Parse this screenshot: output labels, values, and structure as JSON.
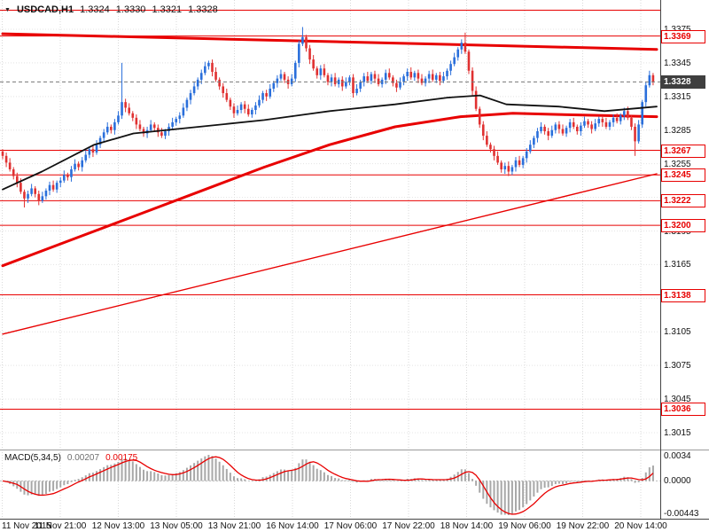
{
  "header": {
    "dropdown_icon": "▼",
    "symbol": "USDCAD,H1",
    "open": "1.3324",
    "high": "1.3330",
    "low": "1.3321",
    "close": "1.3328"
  },
  "chart_data": {
    "type": "candlestick",
    "title": "USDCAD,H1",
    "symbol": "USDCAD",
    "timeframe": "H1",
    "ylim": [
      1.3005,
      1.3395
    ],
    "grid": true,
    "legend_position": "none",
    "x_labels": [
      "11 Nov 2015",
      "11 Nov 21:00",
      "12 Nov 13:00",
      "13 Nov 05:00",
      "13 Nov 21:00",
      "16 Nov 14:00",
      "17 Nov 06:00",
      "17 Nov 22:00",
      "18 Nov 14:00",
      "19 Nov 06:00",
      "19 Nov 22:00",
      "20 Nov 14:00"
    ],
    "y_ticks": [
      "1.3375",
      "1.3345",
      "1.3315",
      "1.3285",
      "1.3255",
      "1.3195",
      "1.3165",
      "1.3105",
      "1.3075",
      "1.3045",
      "1.3015"
    ],
    "levels": [
      {
        "label": "",
        "price": 1.3392
      },
      {
        "label": "1.3369",
        "price": 1.3369
      },
      {
        "label": "1.3267",
        "price": 1.3267
      },
      {
        "label": "1.3245",
        "price": 1.3245
      },
      {
        "label": "1.3222",
        "price": 1.3222
      },
      {
        "label": "1.3200",
        "price": 1.32
      },
      {
        "label": "1.3138",
        "price": 1.3138
      },
      {
        "label": "1.3036",
        "price": 1.3036
      }
    ],
    "current_price": {
      "label": "1.3328",
      "price": 1.3328
    },
    "candles": {
      "first_open": 1.3266,
      "closes": [
        1.3262,
        1.3256,
        1.325,
        1.3244,
        1.3238,
        1.323,
        1.3224,
        1.3228,
        1.3233,
        1.3228,
        1.3222,
        1.3226,
        1.3231,
        1.3236,
        1.3232,
        1.3238,
        1.324,
        1.3245,
        1.3243,
        1.325,
        1.3255,
        1.3252,
        1.3258,
        1.3263,
        1.3268,
        1.3265,
        1.3272,
        1.3278,
        1.3283,
        1.3288,
        1.3285,
        1.3292,
        1.3298,
        1.331,
        1.3305,
        1.33,
        1.3296,
        1.329,
        1.3286,
        1.3282,
        1.3285,
        1.329,
        1.3287,
        1.3283,
        1.328,
        1.3284,
        1.3288,
        1.3292,
        1.3295,
        1.3298,
        1.3305,
        1.3312,
        1.3318,
        1.3324,
        1.333,
        1.3336,
        1.3342,
        1.3345,
        1.3337,
        1.333,
        1.3324,
        1.3318,
        1.3312,
        1.3306,
        1.33,
        1.3303,
        1.3308,
        1.3304,
        1.3299,
        1.3303,
        1.3307,
        1.3312,
        1.3318,
        1.3315,
        1.3322,
        1.3327,
        1.3331,
        1.3335,
        1.333,
        1.3326,
        1.3331,
        1.3345,
        1.3362,
        1.3368,
        1.3358,
        1.3348,
        1.334,
        1.3334,
        1.334,
        1.3334,
        1.3328,
        1.3332,
        1.3326,
        1.333,
        1.3324,
        1.3328,
        1.3332,
        1.3318,
        1.3322,
        1.3328,
        1.3333,
        1.3329,
        1.3335,
        1.3331,
        1.3326,
        1.333,
        1.3336,
        1.3332,
        1.3327,
        1.3323,
        1.3328,
        1.3333,
        1.3337,
        1.3332,
        1.3336,
        1.3331,
        1.3327,
        1.3331,
        1.3335,
        1.333,
        1.3334,
        1.3329,
        1.3333,
        1.3338,
        1.3344,
        1.335,
        1.3357,
        1.3363,
        1.3355,
        1.3338,
        1.332,
        1.3304,
        1.329,
        1.328,
        1.3272,
        1.3268,
        1.3262,
        1.3256,
        1.325,
        1.3253,
        1.3248,
        1.3252,
        1.3258,
        1.3254,
        1.326,
        1.3266,
        1.3272,
        1.3278,
        1.3284,
        1.3288,
        1.3284,
        1.328,
        1.3285,
        1.329,
        1.3286,
        1.3282,
        1.3287,
        1.3292,
        1.3288,
        1.3284,
        1.3289,
        1.3293,
        1.329,
        1.3286,
        1.3291,
        1.3295,
        1.3292,
        1.3288,
        1.3292,
        1.3296,
        1.3293,
        1.3298,
        1.3302,
        1.3296,
        1.3288,
        1.3275,
        1.329,
        1.331,
        1.3325,
        1.3334,
        1.3328
      ],
      "wick_overrides": {
        "6": {
          "l": 1.3216
        },
        "33": {
          "h": 1.3345
        },
        "83": {
          "h": 1.3377
        },
        "128": {
          "h": 1.3372
        },
        "140": {
          "l": 1.3244
        },
        "175": {
          "l": 1.3262
        }
      }
    },
    "indicators": {
      "ma_black": {
        "points": [
          [
            0,
            1.3232
          ],
          [
            0.06,
            1.3248
          ],
          [
            0.14,
            1.3272
          ],
          [
            0.2,
            1.3282
          ],
          [
            0.3,
            1.3288
          ],
          [
            0.4,
            1.3294
          ],
          [
            0.5,
            1.3302
          ],
          [
            0.6,
            1.3308
          ],
          [
            0.68,
            1.3314
          ],
          [
            0.73,
            1.3316
          ],
          [
            0.77,
            1.3308
          ],
          [
            0.85,
            1.3306
          ],
          [
            0.92,
            1.3302
          ],
          [
            1,
            1.3306
          ]
        ]
      },
      "ma_red_slow": {
        "points": [
          [
            0,
            1.3164
          ],
          [
            0.1,
            1.3186
          ],
          [
            0.2,
            1.3208
          ],
          [
            0.3,
            1.323
          ],
          [
            0.4,
            1.3252
          ],
          [
            0.5,
            1.3272
          ],
          [
            0.6,
            1.3288
          ],
          [
            0.7,
            1.3297
          ],
          [
            0.78,
            1.33
          ],
          [
            0.85,
            1.3299
          ],
          [
            1,
            1.3297
          ]
        ]
      },
      "trendline_upper": {
        "points": [
          [
            0,
            1.3371
          ],
          [
            1,
            1.3357
          ]
        ]
      },
      "trendline_lower": {
        "points": [
          [
            0,
            1.3103
          ],
          [
            1,
            1.3246
          ]
        ]
      }
    },
    "macd": {
      "name": "MACD(5,34,5)",
      "fast": 5,
      "slow": 34,
      "signal": 5,
      "value_main": "0.00207",
      "value_signal": "0.00175",
      "y_labels": {
        "top": "0.0034",
        "zero": "0.0000",
        "bottom": "-0.00443"
      }
    },
    "colors": {
      "up": "#2a6fdb",
      "down": "#e03131",
      "line_red": "#e80000",
      "ma_black": "#111111",
      "macd_hist": "#a8a8a8",
      "macd_signal": "#e80000",
      "badge_current_bg": "#3f3f3f",
      "grid": "#d9d9d9"
    }
  }
}
